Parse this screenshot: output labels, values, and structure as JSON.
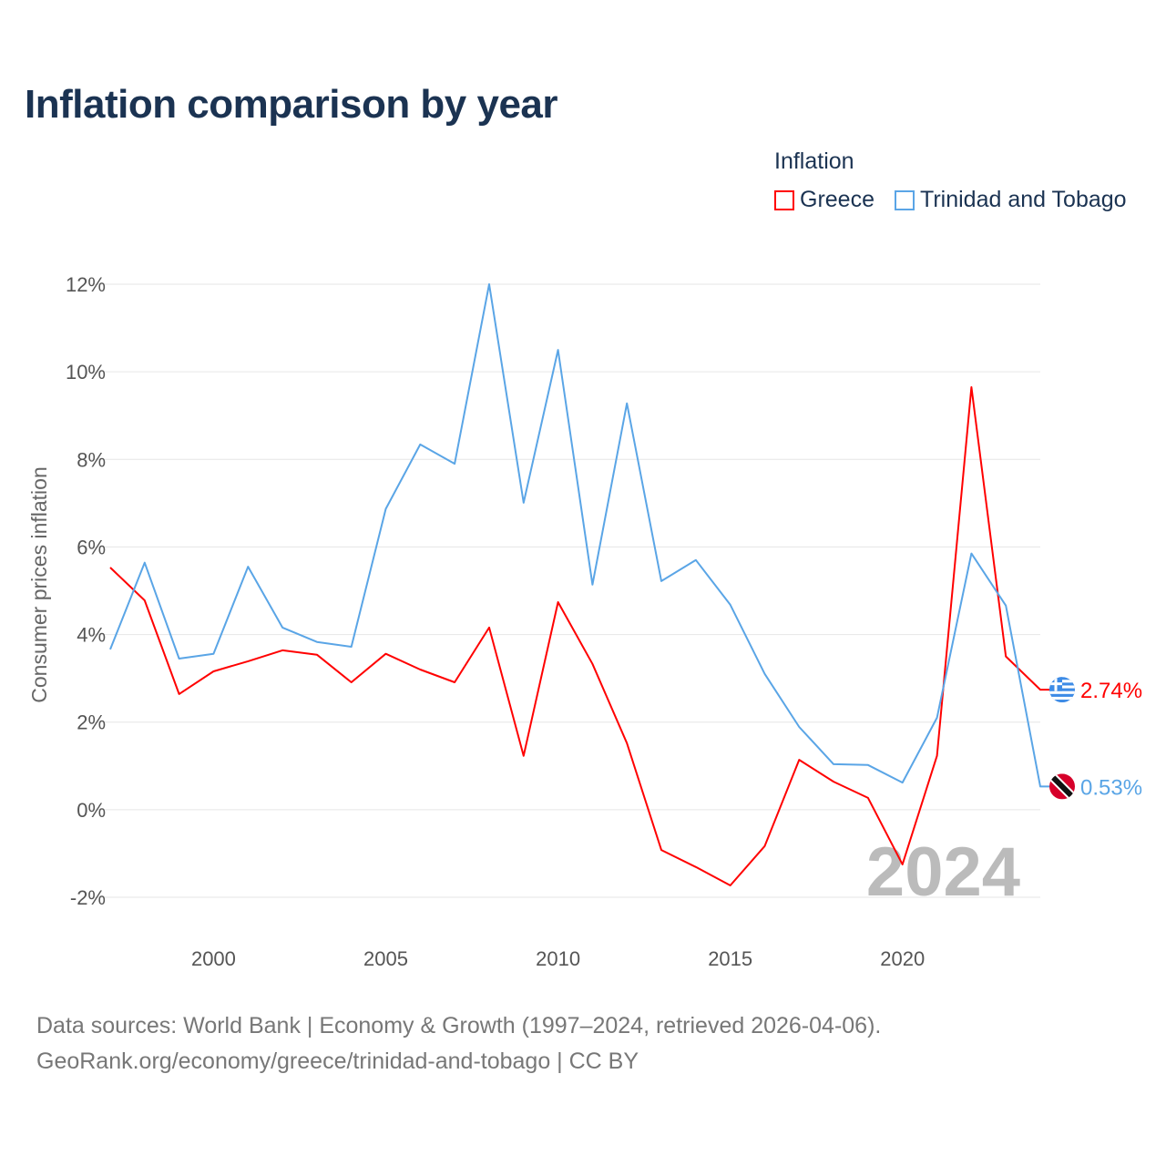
{
  "title": "Inflation comparison by year",
  "legend": {
    "title": "Inflation",
    "items": [
      {
        "label": "Greece",
        "color": "#ff0000"
      },
      {
        "label": "Trinidad and Tobago",
        "color": "#5aa5e6"
      }
    ]
  },
  "source": {
    "line1": "Data sources: World Bank | Economy & Growth (1997–2024, retrieved 2026-04-06).",
    "line2": "GeoRank.org/economy/greece/trinidad-and-tobago | CC BY"
  },
  "chart_data": {
    "type": "line",
    "title": "Inflation comparison by year",
    "ylabel": "Consumer prices inflation",
    "xlabel": "",
    "ylim": [
      -2,
      12
    ],
    "xlim": [
      1997,
      2024
    ],
    "yticks": [
      -2,
      0,
      2,
      4,
      6,
      8,
      10,
      12
    ],
    "ytick_labels": [
      "-2%",
      "0%",
      "2%",
      "4%",
      "6%",
      "8%",
      "10%",
      "12%"
    ],
    "xticks": [
      2000,
      2005,
      2010,
      2015,
      2020
    ],
    "xtick_labels": [
      "2000",
      "2005",
      "2010",
      "2015",
      "2020"
    ],
    "grid": true,
    "legend_position": "top-right",
    "year_watermark": "2024",
    "x": [
      1997,
      1998,
      1999,
      2000,
      2001,
      2002,
      2003,
      2004,
      2005,
      2006,
      2007,
      2008,
      2009,
      2010,
      2011,
      2012,
      2013,
      2014,
      2015,
      2016,
      2017,
      2018,
      2019,
      2020,
      2021,
      2022,
      2023,
      2024
    ],
    "series": [
      {
        "name": "Greece",
        "color": "#ff0000",
        "end_label": "2.74%",
        "flag": "greece-flag",
        "values": [
          5.53,
          4.78,
          2.64,
          3.16,
          3.39,
          3.64,
          3.54,
          2.91,
          3.56,
          3.2,
          2.91,
          4.16,
          1.23,
          4.74,
          3.33,
          1.52,
          -0.92,
          -1.31,
          -1.73,
          -0.83,
          1.14,
          0.64,
          0.27,
          -1.25,
          1.23,
          9.65,
          3.5,
          2.74
        ]
      },
      {
        "name": "Trinidad and Tobago",
        "color": "#5aa5e6",
        "end_label": "0.53%",
        "flag": "trinidad-flag",
        "values": [
          3.66,
          5.64,
          3.45,
          3.56,
          5.55,
          4.16,
          3.83,
          3.72,
          6.87,
          8.34,
          7.9,
          12.0,
          7.01,
          10.5,
          5.14,
          9.28,
          5.22,
          5.7,
          4.68,
          3.1,
          1.89,
          1.04,
          1.02,
          0.62,
          2.1,
          5.85,
          4.66,
          0.53
        ]
      }
    ]
  }
}
